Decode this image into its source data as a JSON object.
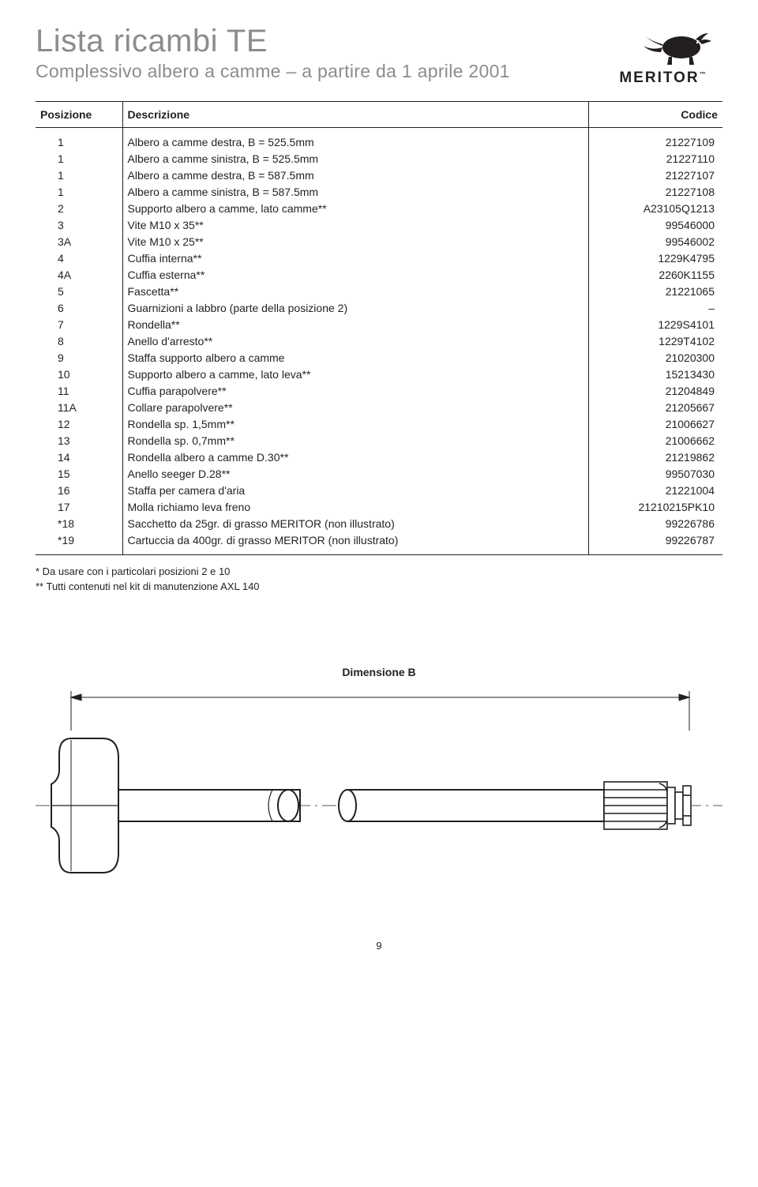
{
  "header": {
    "title": "Lista ricambi TE",
    "subtitle": "Complessivo albero a camme – a partire da 1 aprile 2001",
    "logo_text": "MERITOR",
    "logo_tm": "™"
  },
  "table": {
    "columns": [
      "Posizione",
      "Descrizione",
      "Codice"
    ],
    "rows": [
      [
        "1",
        "Albero a camme destra, B = 525.5mm",
        "21227109"
      ],
      [
        "1",
        "Albero a camme sinistra, B = 525.5mm",
        "21227110"
      ],
      [
        "1",
        "Albero a camme destra, B = 587.5mm",
        "21227107"
      ],
      [
        "1",
        "Albero a camme sinistra, B = 587.5mm",
        "21227108"
      ],
      [
        "2",
        "Supporto albero a camme, lato camme**",
        "A23105Q1213"
      ],
      [
        "3",
        "Vite M10 x 35**",
        "99546000"
      ],
      [
        "3A",
        "Vite M10 x 25**",
        "99546002"
      ],
      [
        "4",
        "Cuffia interna**",
        "1229K4795"
      ],
      [
        "4A",
        "Cuffia esterna**",
        "2260K1155"
      ],
      [
        "5",
        "Fascetta**",
        "21221065"
      ],
      [
        "6",
        "Guarnizioni a labbro (parte della posizione 2)",
        "–"
      ],
      [
        "7",
        "Rondella**",
        "1229S4101"
      ],
      [
        "8",
        "Anello d'arresto**",
        "1229T4102"
      ],
      [
        "9",
        "Staffa supporto albero a camme",
        "21020300"
      ],
      [
        "10",
        "Supporto albero a camme, lato leva**",
        "15213430"
      ],
      [
        "11",
        "Cuffia parapolvere**",
        "21204849"
      ],
      [
        "11A",
        "Collare parapolvere**",
        "21205667"
      ],
      [
        "12",
        "Rondella sp. 1,5mm**",
        "21006627"
      ],
      [
        "13",
        "Rondella sp. 0,7mm**",
        "21006662"
      ],
      [
        "14",
        "Rondella albero a camme D.30**",
        "21219862"
      ],
      [
        "15",
        "Anello seeger D.28**",
        "99507030"
      ],
      [
        "16",
        "Staffa per camera d'aria",
        "21221004"
      ],
      [
        "17",
        "Molla richiamo leva freno",
        "21210215PK10"
      ],
      [
        "*18",
        "Sacchetto da 25gr. di grasso MERITOR (non illustrato)",
        "99226786"
      ],
      [
        "*19",
        "Cartuccia da 400gr. di grasso MERITOR (non illustrato)",
        "99226787"
      ]
    ]
  },
  "notes": [
    "* Da usare con i particolari posizioni 2 e 10",
    "** Tutti contenuti nel kit di manutenzione AXL 140"
  ],
  "diagram": {
    "label": "Dimensione B"
  },
  "page_number": "9"
}
